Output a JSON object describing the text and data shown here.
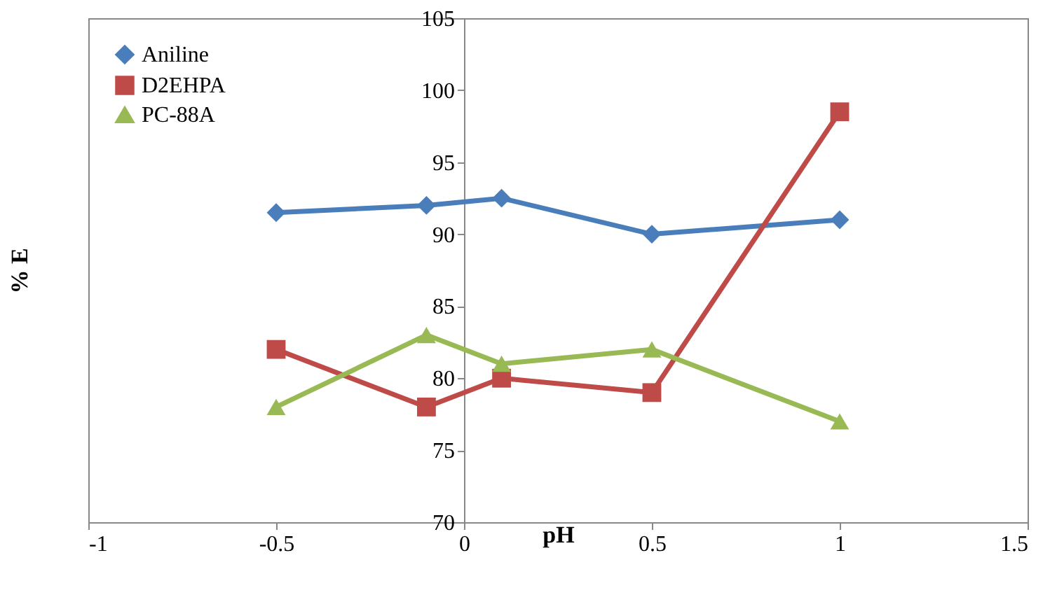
{
  "chart_data": {
    "type": "line",
    "xlabel": "pH",
    "ylabel": "% E",
    "x": [
      -0.5,
      -0.1,
      0.1,
      0.5,
      1
    ],
    "series": [
      {
        "name": "Aniline",
        "color": "#4a7ebb",
        "marker": "diamond",
        "values": [
          91.5,
          92,
          92.5,
          90,
          91
        ]
      },
      {
        "name": "D2EHPA",
        "color": "#be4b48",
        "marker": "square",
        "values": [
          82,
          78,
          80,
          79,
          98.5
        ]
      },
      {
        "name": "PC-88A",
        "color": "#98b954",
        "marker": "triangle",
        "values": [
          78,
          83,
          81,
          82,
          77
        ]
      }
    ],
    "xlim": [
      -1,
      1.5
    ],
    "xticks": [
      -1,
      -0.5,
      0,
      0.5,
      1,
      1.5
    ],
    "ylim": [
      70,
      105
    ],
    "yticks": [
      70,
      75,
      80,
      85,
      90,
      95,
      100,
      105
    ],
    "grid": false,
    "legend": "top left",
    "line_style": "solid"
  }
}
